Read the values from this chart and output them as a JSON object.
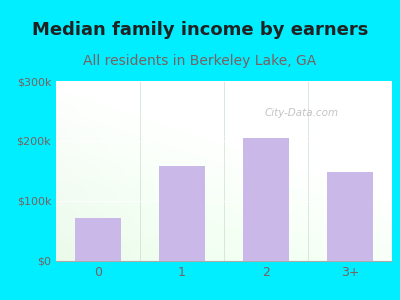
{
  "title": "Median family income by earners",
  "subtitle": "All residents in Berkeley Lake, GA",
  "categories": [
    "0",
    "1",
    "2",
    "3+"
  ],
  "values": [
    72000,
    158000,
    205000,
    148000
  ],
  "bar_color": "#c9b8e8",
  "ylim": [
    0,
    300000
  ],
  "yticks": [
    0,
    100000,
    200000,
    300000
  ],
  "ytick_labels": [
    "$0",
    "$100k",
    "$200k",
    "$300k"
  ],
  "background_outer": "#00eeff",
  "title_color": "#222222",
  "subtitle_color": "#7a6060",
  "tick_color": "#7a6060",
  "watermark": "City-Data.com",
  "title_fontsize": 13,
  "subtitle_fontsize": 10
}
